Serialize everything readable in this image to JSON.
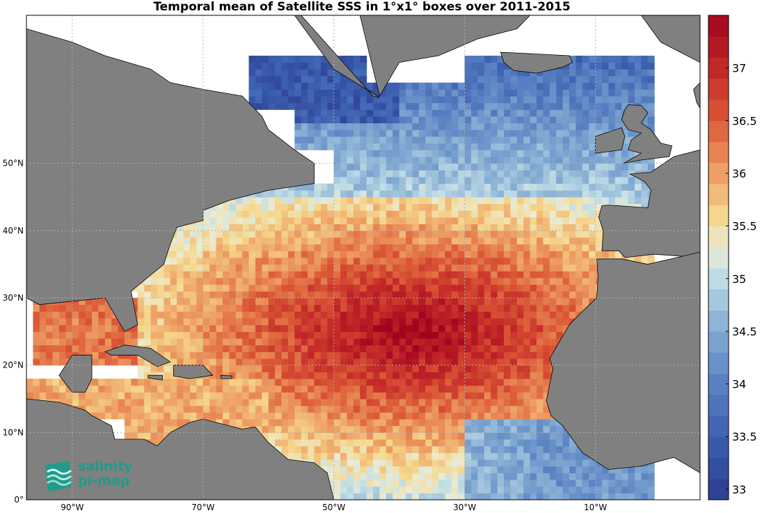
{
  "title": "Temporal mean of Satellite SSS in 1°x1° boxes over 2011-2015",
  "logo": {
    "line1": "salinity",
    "line2": "pi-mep",
    "icon": "wave-stack-icon",
    "color": "#1e9c8c"
  },
  "colors": {
    "land": "#808080",
    "ocean_nodata": "#ffffff",
    "grid": "#b0b0b0"
  },
  "chart_data": {
    "type": "heatmap",
    "variable": "SSS",
    "title": "Temporal mean of Satellite SSS in 1°x1° boxes over 2011-2015",
    "lon_range": [
      -97,
      6
    ],
    "lat_range": [
      0,
      72
    ],
    "lat_ticks": [
      {
        "value": 0,
        "label": "0°"
      },
      {
        "value": 10,
        "label": "10°N"
      },
      {
        "value": 20,
        "label": "20°N"
      },
      {
        "value": 30,
        "label": "30°N"
      },
      {
        "value": 40,
        "label": "40°N"
      },
      {
        "value": 50,
        "label": "50°N"
      }
    ],
    "lon_ticks": [
      {
        "value": -90,
        "label": "90°W"
      },
      {
        "value": -70,
        "label": "70°W"
      },
      {
        "value": -50,
        "label": "50°W"
      },
      {
        "value": -30,
        "label": "30°W"
      },
      {
        "value": -10,
        "label": "10°W"
      }
    ],
    "colorbar": {
      "min": 32.9,
      "max": 37.5,
      "step": 0.2,
      "ticks": [
        33,
        33.5,
        34,
        34.5,
        35,
        35.5,
        36,
        36.5,
        37
      ],
      "tick_labels": [
        "33",
        "33.5",
        "34",
        "34.5",
        "35",
        "35.5",
        "36",
        "36.5",
        "37"
      ],
      "colormap": "blue-white-red"
    },
    "grid": true
  }
}
